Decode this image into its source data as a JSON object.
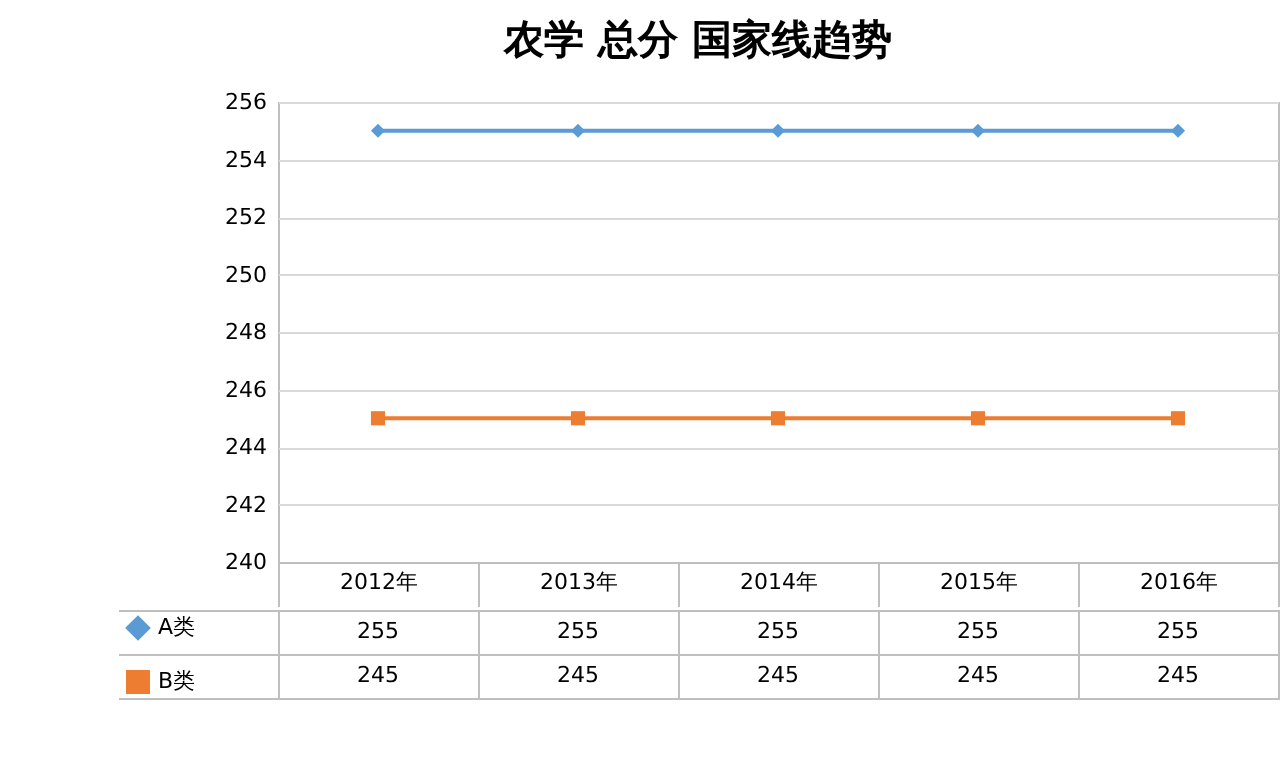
{
  "chart_data": {
    "type": "line",
    "title": "农学 总分 国家线趋势",
    "categories": [
      "2012年",
      "2013年",
      "2014年",
      "2015年",
      "2016年"
    ],
    "series": [
      {
        "name": "A类",
        "color": "#5b9bd5",
        "marker": "diamond",
        "values": [
          255,
          255,
          255,
          255,
          255
        ]
      },
      {
        "name": "B类",
        "color": "#ed7d31",
        "marker": "square",
        "values": [
          245,
          245,
          245,
          245,
          245
        ]
      }
    ],
    "ylim": [
      240,
      256
    ],
    "yticks": [
      240,
      242,
      244,
      246,
      248,
      250,
      252,
      254,
      256
    ],
    "grid": "y",
    "legend": "bottom left",
    "data_labels": true
  }
}
